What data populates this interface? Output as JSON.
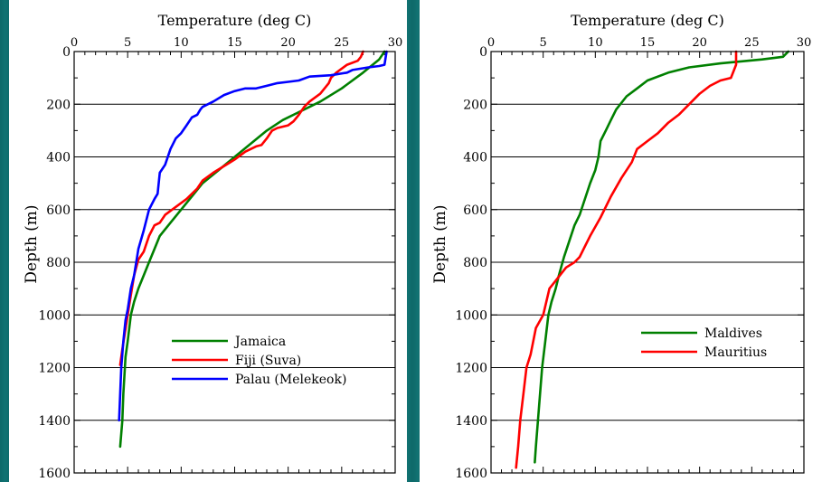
{
  "chart_data": [
    {
      "type": "line",
      "xlabel": "Temperature (deg C)",
      "ylabel": "Depth (m)",
      "xlim": [
        0,
        30
      ],
      "ylim": [
        0,
        1600
      ],
      "x_ticks": [
        "0",
        "5",
        "10",
        "15",
        "20",
        "25",
        "30"
      ],
      "y_ticks": [
        "0",
        "200",
        "400",
        "600",
        "800",
        "1000",
        "1200",
        "1400",
        "1600"
      ],
      "y_inverted": true,
      "grid": "horizontal",
      "legend_position": "bottom-right",
      "series": [
        {
          "name": "Jamaica",
          "color": "#008000",
          "points": [
            [
              29,
              0
            ],
            [
              28.5,
              30
            ],
            [
              27,
              80
            ],
            [
              25,
              140
            ],
            [
              23,
              190
            ],
            [
              21,
              230
            ],
            [
              19.5,
              260
            ],
            [
              18,
              300
            ],
            [
              16.5,
              350
            ],
            [
              15,
              400
            ],
            [
              13.5,
              450
            ],
            [
              12,
              500
            ],
            [
              11,
              550
            ],
            [
              10,
              600
            ],
            [
              9,
              650
            ],
            [
              8,
              700
            ],
            [
              7.5,
              750
            ],
            [
              7,
              800
            ],
            [
              6.5,
              850
            ],
            [
              6,
              900
            ],
            [
              5.6,
              950
            ],
            [
              5.3,
              1000
            ],
            [
              5,
              1100
            ],
            [
              4.8,
              1160
            ],
            [
              4.6,
              1300
            ],
            [
              4.5,
              1400
            ],
            [
              4.3,
              1500
            ]
          ]
        },
        {
          "name": "Fiji (Suva)",
          "color": "#ff0000",
          "points": [
            [
              27,
              0
            ],
            [
              26.8,
              20
            ],
            [
              26.5,
              35
            ],
            [
              25.5,
              50
            ],
            [
              24.5,
              80
            ],
            [
              24,
              100
            ],
            [
              23.8,
              120
            ],
            [
              23,
              160
            ],
            [
              22,
              190
            ],
            [
              21.5,
              210
            ],
            [
              21,
              240
            ],
            [
              20.5,
              265
            ],
            [
              20,
              280
            ],
            [
              19,
              290
            ],
            [
              18.5,
              300
            ],
            [
              18,
              330
            ],
            [
              17.5,
              355
            ],
            [
              17,
              360
            ],
            [
              16,
              380
            ],
            [
              15,
              410
            ],
            [
              13,
              460
            ],
            [
              12,
              490
            ],
            [
              11.5,
              520
            ],
            [
              10.5,
              560
            ],
            [
              9.5,
              590
            ],
            [
              8.5,
              620
            ],
            [
              8,
              650
            ],
            [
              7.5,
              660
            ],
            [
              7,
              700
            ],
            [
              6.5,
              760
            ],
            [
              6,
              790
            ],
            [
              5.6,
              850
            ],
            [
              5.2,
              950
            ],
            [
              5,
              1000
            ],
            [
              4.7,
              1080
            ],
            [
              4.5,
              1130
            ],
            [
              4.3,
              1190
            ]
          ]
        },
        {
          "name": "Palau (Melekeok)",
          "color": "#0000ff",
          "points": [
            [
              29.2,
              0
            ],
            [
              29,
              50
            ],
            [
              28.5,
              55
            ],
            [
              27.5,
              60
            ],
            [
              26,
              70
            ],
            [
              25.5,
              80
            ],
            [
              24,
              90
            ],
            [
              22,
              95
            ],
            [
              21,
              110
            ],
            [
              20,
              115
            ],
            [
              19,
              120
            ],
            [
              18,
              130
            ],
            [
              17,
              140
            ],
            [
              16,
              140
            ],
            [
              15,
              150
            ],
            [
              14,
              165
            ],
            [
              13,
              190
            ],
            [
              12,
              210
            ],
            [
              11.8,
              220
            ],
            [
              11.5,
              240
            ],
            [
              11,
              250
            ],
            [
              10.5,
              280
            ],
            [
              10,
              310
            ],
            [
              9.5,
              330
            ],
            [
              9,
              370
            ],
            [
              8.5,
              430
            ],
            [
              8,
              460
            ],
            [
              7.8,
              540
            ],
            [
              7.5,
              560
            ],
            [
              7,
              600
            ],
            [
              6.5,
              680
            ],
            [
              6,
              750
            ],
            [
              5.6,
              850
            ],
            [
              5.3,
              900
            ],
            [
              5,
              980
            ],
            [
              4.8,
              1020
            ],
            [
              4.6,
              1100
            ],
            [
              4.4,
              1200
            ],
            [
              4.3,
              1300
            ],
            [
              4.2,
              1400
            ]
          ]
        }
      ]
    },
    {
      "type": "line",
      "xlabel": "Temperature (deg C)",
      "ylabel": "Depth (m)",
      "xlim": [
        0,
        30
      ],
      "ylim": [
        0,
        1600
      ],
      "x_ticks": [
        "0",
        "5",
        "10",
        "15",
        "20",
        "25",
        "30"
      ],
      "y_ticks": [
        "0",
        "200",
        "400",
        "600",
        "800",
        "1000",
        "1200",
        "1400",
        "1600"
      ],
      "y_inverted": true,
      "grid": "horizontal",
      "legend_position": "bottom-right",
      "series": [
        {
          "name": "Maldives",
          "color": "#008000",
          "points": [
            [
              28.5,
              0
            ],
            [
              28,
              20
            ],
            [
              26,
              30
            ],
            [
              22,
              45
            ],
            [
              19,
              60
            ],
            [
              17,
              80
            ],
            [
              15,
              110
            ],
            [
              14,
              140
            ],
            [
              13,
              170
            ],
            [
              12,
              220
            ],
            [
              11.5,
              260
            ],
            [
              11,
              300
            ],
            [
              10.5,
              340
            ],
            [
              10.3,
              400
            ],
            [
              10,
              450
            ],
            [
              9.5,
              500
            ],
            [
              9,
              560
            ],
            [
              8.5,
              620
            ],
            [
              8,
              660
            ],
            [
              7.5,
              720
            ],
            [
              7,
              780
            ],
            [
              6.5,
              850
            ],
            [
              6.2,
              900
            ],
            [
              5.8,
              950
            ],
            [
              5.5,
              1000
            ],
            [
              5.2,
              1100
            ],
            [
              4.9,
              1200
            ],
            [
              4.7,
              1300
            ],
            [
              4.5,
              1400
            ],
            [
              4.3,
              1500
            ],
            [
              4.2,
              1560
            ]
          ]
        },
        {
          "name": "Mauritius",
          "color": "#ff0000",
          "points": [
            [
              23.5,
              0
            ],
            [
              23.5,
              50
            ],
            [
              23,
              100
            ],
            [
              22,
              110
            ],
            [
              21,
              130
            ],
            [
              20,
              160
            ],
            [
              19,
              200
            ],
            [
              18,
              240
            ],
            [
              17,
              270
            ],
            [
              16,
              310
            ],
            [
              15,
              340
            ],
            [
              14,
              370
            ],
            [
              13.5,
              420
            ],
            [
              12.5,
              480
            ],
            [
              11.5,
              550
            ],
            [
              10.5,
              630
            ],
            [
              9.5,
              700
            ],
            [
              9,
              740
            ],
            [
              8.5,
              780
            ],
            [
              8,
              800
            ],
            [
              7.2,
              820
            ],
            [
              6.6,
              850
            ],
            [
              6,
              880
            ],
            [
              5.6,
              900
            ],
            [
              5,
              1000
            ],
            [
              4.3,
              1050
            ],
            [
              3.8,
              1150
            ],
            [
              3.4,
              1200
            ],
            [
              3.1,
              1300
            ],
            [
              2.8,
              1400
            ],
            [
              2.6,
              1500
            ],
            [
              2.4,
              1580
            ]
          ]
        }
      ]
    }
  ]
}
